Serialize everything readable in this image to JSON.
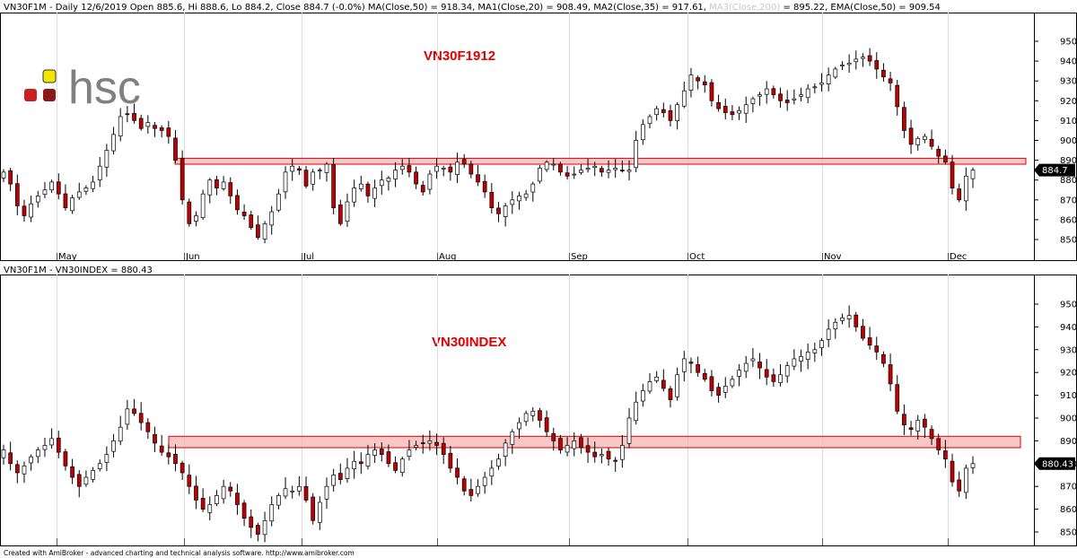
{
  "header": {
    "top_text": "VN30F1M - Daily 12/6/2019 Open 885.6, Hi 888.6, Lo 884.2, Close 884.7 (-0.0%) MA(Close,50) = 918.34, MA1(Close,20) = 908.49, MA2(Close,35) = 917.61,",
    "top_muted": "MA3(Close,200)",
    "top_rest": "= 895.22, EMA(Close,50) = 909.54",
    "bottom_text": "VN30F1M - VN30INDEX = 880.43"
  },
  "logo": {
    "text": "hsc",
    "colors": {
      "yellow": "#f5e300",
      "red": "#cc1f1f",
      "dark_red": "#8b1a1a"
    }
  },
  "footer": {
    "text": "Created with AmiBroker - advanced charting and technical analysis software. http://www.amibroker.com"
  },
  "colors": {
    "up_fill": "#ffffff",
    "down_fill": "#c00000",
    "wick": "#000000",
    "band_fill": "#f5b4b4",
    "band_stroke": "#e00000",
    "title": "#e00000"
  },
  "chart_data": [
    {
      "type": "candlestick",
      "title": "VN30F1912",
      "ylim": [
        843,
        953
      ],
      "yticks": [
        850,
        860,
        870,
        880,
        890,
        900,
        910,
        920,
        930,
        940,
        950
      ],
      "months": [
        "May",
        "Jun",
        "Jul",
        "Aug",
        "Sep",
        "Oct",
        "Nov",
        "Dec"
      ],
      "last_value_label": "884.7",
      "support_band": [
        888,
        891
      ],
      "closes": [
        884,
        878,
        867,
        862,
        868,
        872,
        875,
        879,
        873,
        866,
        871,
        874,
        876,
        879,
        887,
        895,
        903,
        912,
        913,
        910,
        906,
        909,
        906,
        905,
        902,
        890,
        870,
        858,
        862,
        873,
        880,
        876,
        879,
        872,
        865,
        862,
        856,
        851,
        858,
        864,
        873,
        884,
        887,
        885,
        877,
        884,
        885,
        888,
        866,
        858,
        869,
        876,
        878,
        872,
        876,
        880,
        881,
        885,
        887,
        884,
        878,
        874,
        883,
        887,
        886,
        884,
        889,
        888,
        883,
        879,
        874,
        866,
        863,
        867,
        870,
        872,
        873,
        878,
        886,
        889,
        888,
        884,
        882,
        883,
        885,
        886,
        887,
        884,
        885,
        886,
        885,
        885,
        900,
        908,
        912,
        916,
        914,
        910,
        918,
        925,
        933,
        930,
        928,
        920,
        916,
        914,
        913,
        915,
        918,
        921,
        923,
        926,
        923,
        920,
        919,
        921,
        923,
        926,
        927,
        929,
        933,
        936,
        938,
        939,
        941,
        942,
        940,
        936,
        932,
        929,
        917,
        905,
        898,
        901,
        902,
        897,
        892,
        889,
        876,
        870,
        882,
        885
      ]
    },
    {
      "type": "candlestick",
      "title": "VN30INDEX",
      "ylim": [
        843,
        953
      ],
      "yticks": [
        850,
        860,
        870,
        880,
        890,
        900,
        910,
        920,
        930,
        940,
        950
      ],
      "last_value_label": "880.43",
      "support_band": [
        887,
        892
      ],
      "closes": [
        886,
        880,
        876,
        879,
        883,
        886,
        888,
        891,
        885,
        879,
        874,
        870,
        874,
        877,
        880,
        884,
        890,
        896,
        904,
        902,
        898,
        894,
        889,
        885,
        883,
        880,
        876,
        870,
        864,
        860,
        862,
        866,
        870,
        868,
        862,
        856,
        852,
        849,
        855,
        862,
        866,
        869,
        868,
        870,
        864,
        855,
        863,
        870,
        875,
        873,
        878,
        881,
        880,
        884,
        886,
        884,
        880,
        877,
        882,
        886,
        888,
        889,
        890,
        888,
        884,
        878,
        874,
        868,
        866,
        870,
        874,
        878,
        882,
        889,
        894,
        898,
        902,
        903,
        899,
        894,
        890,
        886,
        888,
        890,
        887,
        885,
        883,
        884,
        882,
        881,
        888,
        900,
        907,
        912,
        916,
        918,
        913,
        908,
        919,
        926,
        924,
        920,
        917,
        912,
        910,
        914,
        917,
        921,
        924,
        926,
        922,
        918,
        916,
        919,
        923,
        926,
        927,
        929,
        930,
        934,
        939,
        942,
        944,
        945,
        940,
        935,
        932,
        929,
        924,
        915,
        903,
        897,
        895,
        899,
        896,
        891,
        886,
        882,
        872,
        868,
        878,
        880
      ]
    }
  ]
}
